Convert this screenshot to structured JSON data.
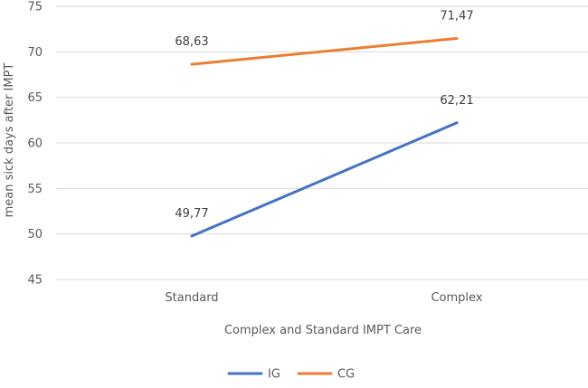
{
  "chart_data": {
    "type": "line",
    "title": "",
    "xlabel": "Complex and Standard IMPT Care",
    "ylabel": "mean sick days after IMPT",
    "categories": [
      "Standard",
      "Complex"
    ],
    "ylim": [
      45,
      75
    ],
    "yticks": [
      45,
      50,
      55,
      60,
      65,
      70,
      75
    ],
    "grid": true,
    "legend_position": "bottom",
    "series": [
      {
        "name": "IG",
        "values": [
          49.77,
          62.21
        ],
        "labels": [
          "49,77",
          "62,21"
        ],
        "color": "#4472C4"
      },
      {
        "name": "CG",
        "values": [
          68.63,
          71.47
        ],
        "labels": [
          "68,63",
          "71,47"
        ],
        "color": "#ED7D31"
      }
    ]
  }
}
